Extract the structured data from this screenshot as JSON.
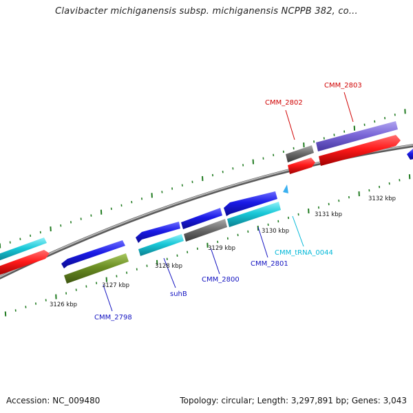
{
  "title": "Clavibacter michiganensis subsp. michiganensis NCPPB 382, co...",
  "footer": {
    "accession": "Accession: NC_009480",
    "summary": "Topology: circular; Length: 3,297,891 bp; Genes: 3,043"
  },
  "colors": {
    "backbone": "#8a8a8a",
    "tick": "#1f7a1f",
    "gene_label_blue": "#1010c0",
    "gene_label_red": "#d00000",
    "gene_label_cyan": "#00b8d8"
  },
  "scale_labels": [
    "3126 kbp",
    "3127 kbp",
    "3128 kbp",
    "3129 kbp",
    "3130 kbp",
    "3131 kbp",
    "3132 kbp"
  ],
  "gene_labels": [
    {
      "name": "CMM_2798",
      "color": "blue"
    },
    {
      "name": "suhB",
      "color": "blue"
    },
    {
      "name": "CMM_2800",
      "color": "blue"
    },
    {
      "name": "CMM_2801",
      "color": "blue"
    },
    {
      "name": "CMM_tRNA_0044",
      "color": "cyan"
    },
    {
      "name": "CMM_2802",
      "color": "red"
    },
    {
      "name": "CMM_2803",
      "color": "red"
    }
  ],
  "features": [
    {
      "name": "blue-gene",
      "color": "#1a1ae6",
      "track": "outer"
    },
    {
      "name": "red-gene",
      "color": "#ff1a1a",
      "track": "inner"
    },
    {
      "name": "cyan-gene",
      "color": "#19c8d8",
      "track": "inner"
    },
    {
      "name": "olive-gene",
      "color": "#6b8e23",
      "track": "inner"
    },
    {
      "name": "gray-gene",
      "color": "#6e6e6e",
      "track": "outer"
    },
    {
      "name": "purple-gene",
      "color": "#7b68d8",
      "track": "outer"
    }
  ]
}
